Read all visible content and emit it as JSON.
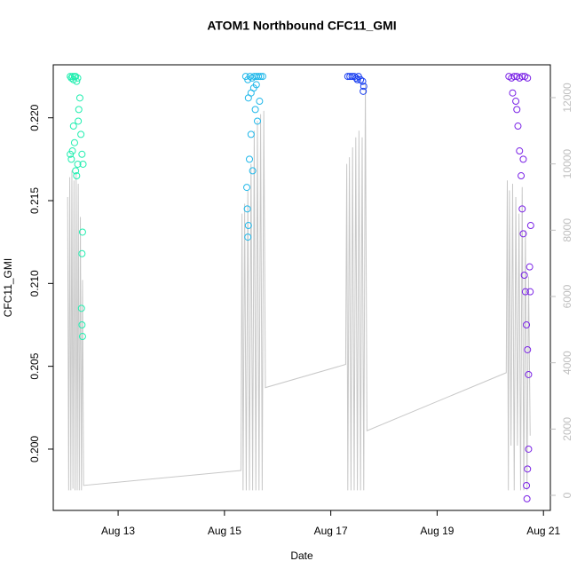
{
  "chart_data": {
    "type": "scatter",
    "title": "ATOM1 Northbound CFC11_GMI",
    "x_label": "Date",
    "y_label": "CFC11_GMI",
    "xlim": [
      11.78,
      21.13
    ],
    "xticks": [
      {
        "value": 13,
        "label": "Aug 13"
      },
      {
        "value": 15,
        "label": "Aug 15"
      },
      {
        "value": 17,
        "label": "Aug 17"
      },
      {
        "value": 19,
        "label": "Aug 19"
      },
      {
        "value": 21,
        "label": "Aug 21"
      }
    ],
    "ylim": [
      0.1963,
      0.2232
    ],
    "yticks": [
      {
        "value": 0.2,
        "label": "0.200"
      },
      0.205,
      {
        "value": 0.21,
        "label": "0.210"
      },
      0.215,
      {
        "value": 0.22,
        "label": "0.220"
      }
    ],
    "y2lim": [
      -455,
      12990
    ],
    "y2ticks": [
      0,
      2000,
      4000,
      6000,
      8000,
      10000,
      12000
    ],
    "y2_color": "#bebebe",
    "series": [
      {
        "color": "#c8c8c8",
        "axis": "y2",
        "line": true,
        "x": [
          12.05,
          12.07,
          12.09,
          12.11,
          12.13,
          12.15,
          12.17,
          12.19,
          12.21,
          12.23,
          12.25,
          12.27,
          12.29,
          12.31,
          12.33,
          12.35,
          15.31,
          15.33,
          15.35,
          15.38,
          15.41,
          15.44,
          15.47,
          15.5,
          15.53,
          15.56,
          15.59,
          15.62,
          15.65,
          15.68,
          15.71,
          15.74,
          15.77,
          17.28,
          17.3,
          17.32,
          17.35,
          17.38,
          17.41,
          17.44,
          17.47,
          17.5,
          17.53,
          17.56,
          17.59,
          17.62,
          17.65,
          17.68,
          20.3,
          20.32,
          20.34,
          20.36,
          20.39,
          20.42,
          20.45,
          20.48,
          20.51,
          20.54,
          20.57,
          20.6,
          20.63,
          20.66,
          20.69,
          20.72,
          20.75
        ],
        "values": [
          9000,
          150,
          9600,
          150,
          9800,
          200,
          9500,
          150,
          9700,
          150,
          9400,
          150,
          8400,
          150,
          6500,
          300,
          750,
          8500,
          150,
          8800,
          150,
          9200,
          150,
          10000,
          150,
          11000,
          150,
          11300,
          150,
          11500,
          150,
          11600,
          3250,
          3950,
          10000,
          150,
          10200,
          150,
          10500,
          150,
          10800,
          150,
          11000,
          150,
          10800,
          150,
          12400,
          1950,
          3700,
          9500,
          150,
          9200,
          1500,
          9400,
          150,
          9000,
          1500,
          8500,
          150,
          9300,
          150,
          8000,
          150,
          6600,
          1800
        ]
      },
      {
        "color": "#22eeb0",
        "x": [
          12.1,
          12.12,
          12.14,
          12.16,
          12.18,
          12.2,
          12.22,
          12.24,
          12.12,
          12.14,
          12.16,
          12.18,
          12.2,
          12.22,
          12.24,
          12.26,
          12.28,
          12.3,
          12.32,
          12.34,
          12.33,
          12.32,
          12.31,
          12.32,
          12.33,
          12.25,
          12.1
        ],
        "values": [
          0.2225,
          0.2224,
          0.2225,
          0.2223,
          0.2225,
          0.2225,
          0.2222,
          0.2224,
          0.2175,
          0.218,
          0.2195,
          0.2185,
          0.2168,
          0.2165,
          0.2172,
          0.2205,
          0.2212,
          0.219,
          0.2178,
          0.2172,
          0.2131,
          0.2118,
          0.2085,
          0.2075,
          0.2068,
          0.2198,
          0.2178
        ]
      },
      {
        "color": "#20b8ea",
        "x": [
          15.4,
          15.44,
          15.48,
          15.52,
          15.56,
          15.6,
          15.64,
          15.68,
          15.72,
          15.45,
          15.5,
          15.55,
          15.6,
          15.42,
          15.43,
          15.44,
          15.45,
          15.47,
          15.5,
          15.53,
          15.58,
          15.62,
          15.66
        ],
        "values": [
          0.2225,
          0.2223,
          0.2225,
          0.2224,
          0.2225,
          0.2225,
          0.2225,
          0.2225,
          0.2225,
          0.2212,
          0.2215,
          0.2218,
          0.222,
          0.2158,
          0.2145,
          0.2128,
          0.2135,
          0.2175,
          0.219,
          0.2168,
          0.2205,
          0.2198,
          0.221
        ]
      },
      {
        "color": "#1a3ff0",
        "x": [
          17.32,
          17.36,
          17.4,
          17.44,
          17.48,
          17.52,
          17.56,
          17.6,
          17.62,
          17.61,
          17.5
        ],
        "values": [
          0.2225,
          0.2225,
          0.2225,
          0.2225,
          0.2224,
          0.2225,
          0.2223,
          0.2222,
          0.2219,
          0.2216,
          0.2223
        ]
      },
      {
        "color": "#7a22e6",
        "x": [
          20.35,
          20.4,
          20.45,
          20.5,
          20.55,
          20.6,
          20.65,
          20.7,
          20.42,
          20.48,
          20.52,
          20.55,
          20.58,
          20.6,
          20.62,
          20.64,
          20.66,
          20.68,
          20.7,
          20.72,
          20.72,
          20.7,
          20.68,
          20.69,
          20.74,
          20.75,
          20.76,
          20.5,
          20.62
        ],
        "values": [
          0.2225,
          0.2224,
          0.2225,
          0.2225,
          0.2224,
          0.2225,
          0.2225,
          0.2224,
          0.2215,
          0.221,
          0.2195,
          0.218,
          0.2165,
          0.2145,
          0.213,
          0.2105,
          0.2095,
          0.2075,
          0.206,
          0.2045,
          0.2,
          0.1988,
          0.1978,
          0.197,
          0.211,
          0.2095,
          0.2135,
          0.2205,
          0.2175
        ]
      }
    ]
  }
}
